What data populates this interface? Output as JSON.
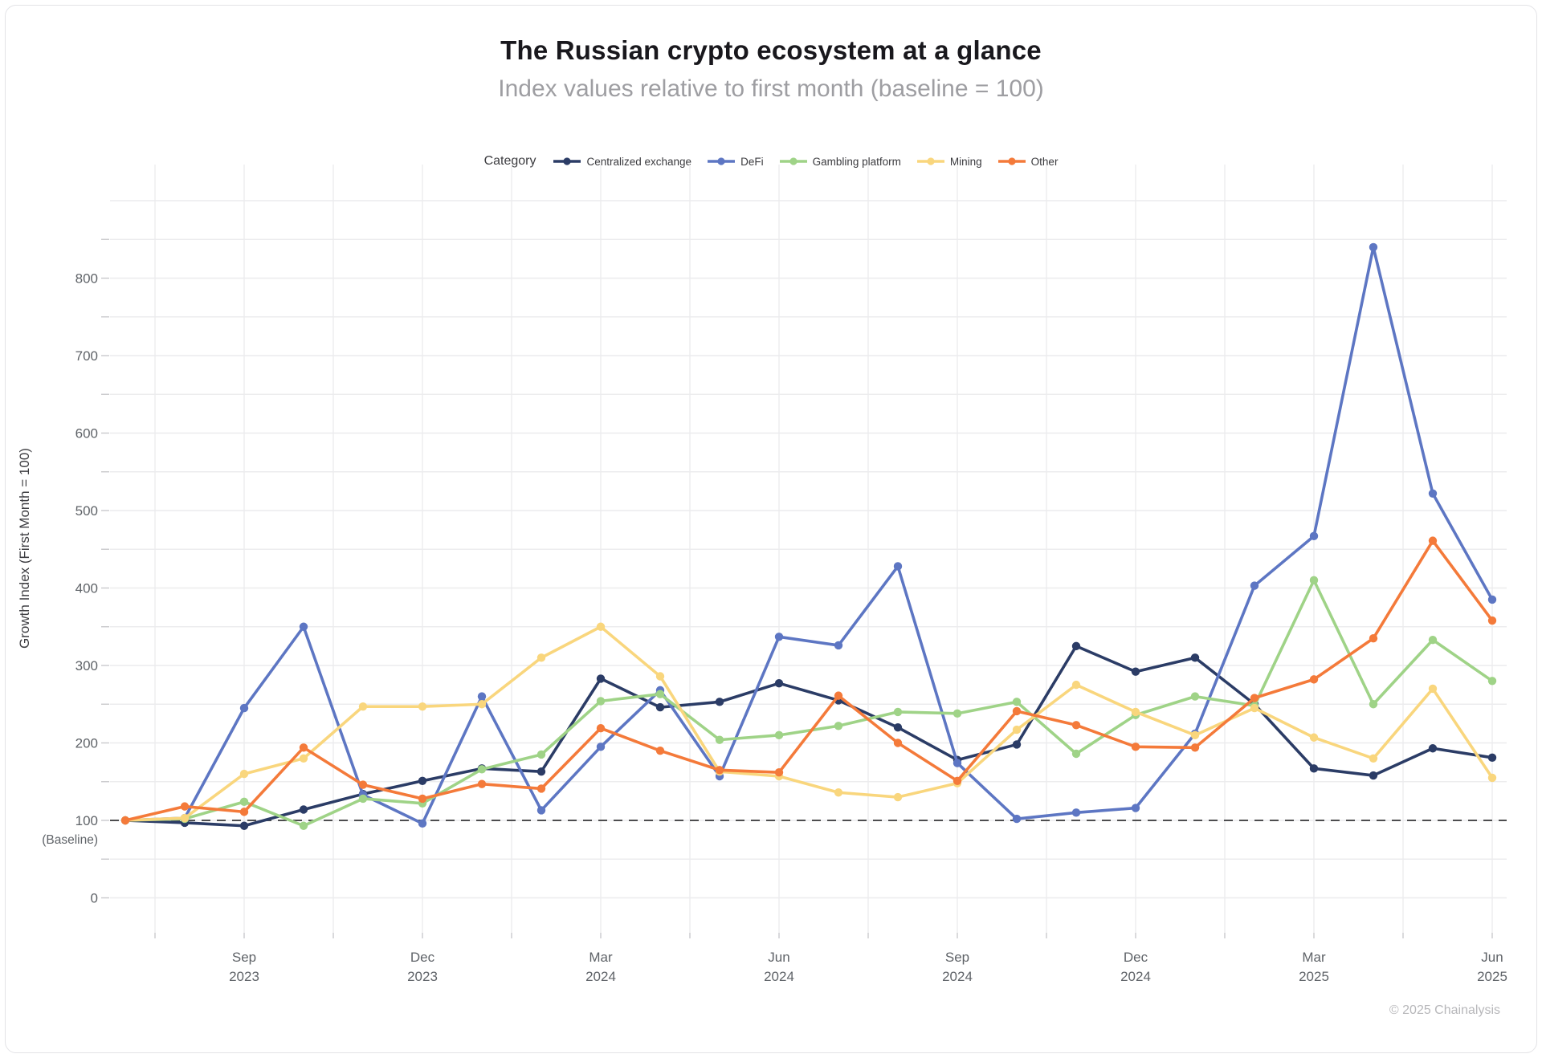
{
  "header": {
    "title": "The Russian crypto ecosystem at a glance",
    "subtitle": "Index values relative to first month (baseline = 100)"
  },
  "legend": {
    "title": "Category"
  },
  "footer": {
    "copyright": "© 2025 Chainalysis"
  },
  "chart_data": {
    "type": "line",
    "title": "The Russian crypto ecosystem at a glance",
    "subtitle": "Index values relative to first month (baseline = 100)",
    "xlabel": "",
    "ylabel": "Growth Index (First Month = 100)",
    "legend_position": "top",
    "grid": true,
    "ylim": [
      -45,
      950
    ],
    "y_ticks": [
      0,
      100,
      200,
      300,
      400,
      500,
      600,
      700,
      800
    ],
    "baseline": {
      "value": 100,
      "label": "(Baseline)"
    },
    "months": [
      "Jul 2023",
      "Aug 2023",
      "Sep 2023",
      "Oct 2023",
      "Nov 2023",
      "Dec 2023",
      "Jan 2024",
      "Feb 2024",
      "Mar 2024",
      "Apr 2024",
      "May 2024",
      "Jun 2024",
      "Jul 2024",
      "Aug 2024",
      "Sep 2024",
      "Oct 2024",
      "Nov 2024",
      "Dec 2024",
      "Jan 2025",
      "Feb 2025",
      "Mar 2025",
      "Apr 2025",
      "May 2025",
      "Jun 2025"
    ],
    "x_tick_indices": [
      2,
      5,
      8,
      11,
      14,
      17,
      20,
      23
    ],
    "series": [
      {
        "name": "Centralized exchange",
        "color": "#2b3c66",
        "values": [
          100,
          97,
          93,
          114,
          134,
          151,
          167,
          163,
          283,
          246,
          253,
          277,
          255,
          220,
          178,
          198,
          325,
          292,
          310,
          250,
          167,
          158,
          193,
          181
        ]
      },
      {
        "name": "DeFi",
        "color": "#5d76c3",
        "values": [
          100,
          103,
          245,
          350,
          133,
          96,
          260,
          113,
          195,
          268,
          157,
          337,
          326,
          428,
          174,
          102,
          110,
          116,
          212,
          403,
          467,
          840,
          522,
          385
        ]
      },
      {
        "name": "Gambling platform",
        "color": "#9fd387",
        "values": [
          100,
          102,
          124,
          93,
          128,
          122,
          166,
          185,
          254,
          263,
          204,
          210,
          222,
          240,
          238,
          253,
          186,
          236,
          260,
          248,
          410,
          250,
          333,
          280
        ]
      },
      {
        "name": "Mining",
        "color": "#f9d67d",
        "values": [
          100,
          103,
          160,
          180,
          247,
          247,
          250,
          310,
          350,
          286,
          163,
          157,
          136,
          130,
          148,
          217,
          275,
          240,
          210,
          245,
          207,
          180,
          270,
          155
        ]
      },
      {
        "name": "Other",
        "color": "#f47a3a",
        "values": [
          100,
          118,
          111,
          194,
          146,
          128,
          147,
          141,
          219,
          190,
          165,
          162,
          261,
          200,
          151,
          241,
          223,
          195,
          194,
          258,
          282,
          335,
          461,
          358
        ]
      }
    ]
  }
}
